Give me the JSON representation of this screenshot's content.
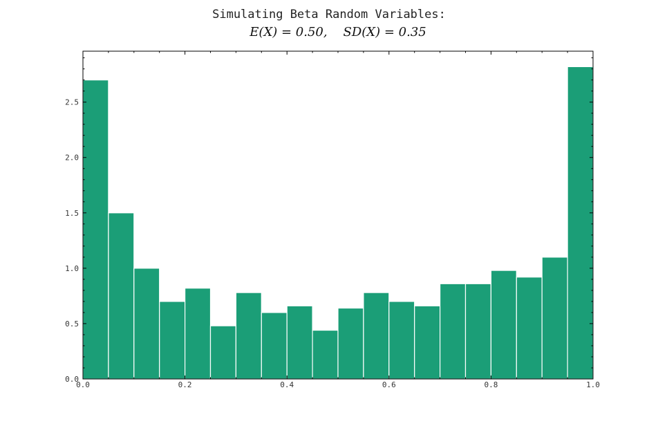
{
  "chart_data": {
    "type": "bar",
    "title": "Simulating Beta Random Variables:",
    "subtitle": "E(X) = 0.50,    SD(X) = 0.35",
    "xlabel": "",
    "ylabel": "",
    "bin_edges": [
      0.0,
      0.05,
      0.1,
      0.15,
      0.2,
      0.25,
      0.3,
      0.35,
      0.4,
      0.45,
      0.5,
      0.55,
      0.6,
      0.65,
      0.7,
      0.75,
      0.8,
      0.85,
      0.9,
      0.95,
      1.0
    ],
    "values": [
      2.7,
      1.5,
      1.0,
      0.7,
      0.82,
      0.48,
      0.78,
      0.6,
      0.66,
      0.44,
      0.64,
      0.78,
      0.7,
      0.66,
      0.86,
      0.86,
      0.98,
      0.92,
      1.1,
      2.82
    ],
    "xlim": [
      0.0,
      1.0
    ],
    "ylim": [
      0.0,
      2.96
    ],
    "x_ticks": [
      "0.0",
      "0.2",
      "0.4",
      "0.6",
      "0.8",
      "1.0"
    ],
    "y_ticks": [
      "0.0",
      "0.5",
      "1.0",
      "1.5",
      "2.0",
      "2.5"
    ],
    "bar_color": "#1b9e77",
    "edge_color": "#ffffff",
    "grid": false
  }
}
